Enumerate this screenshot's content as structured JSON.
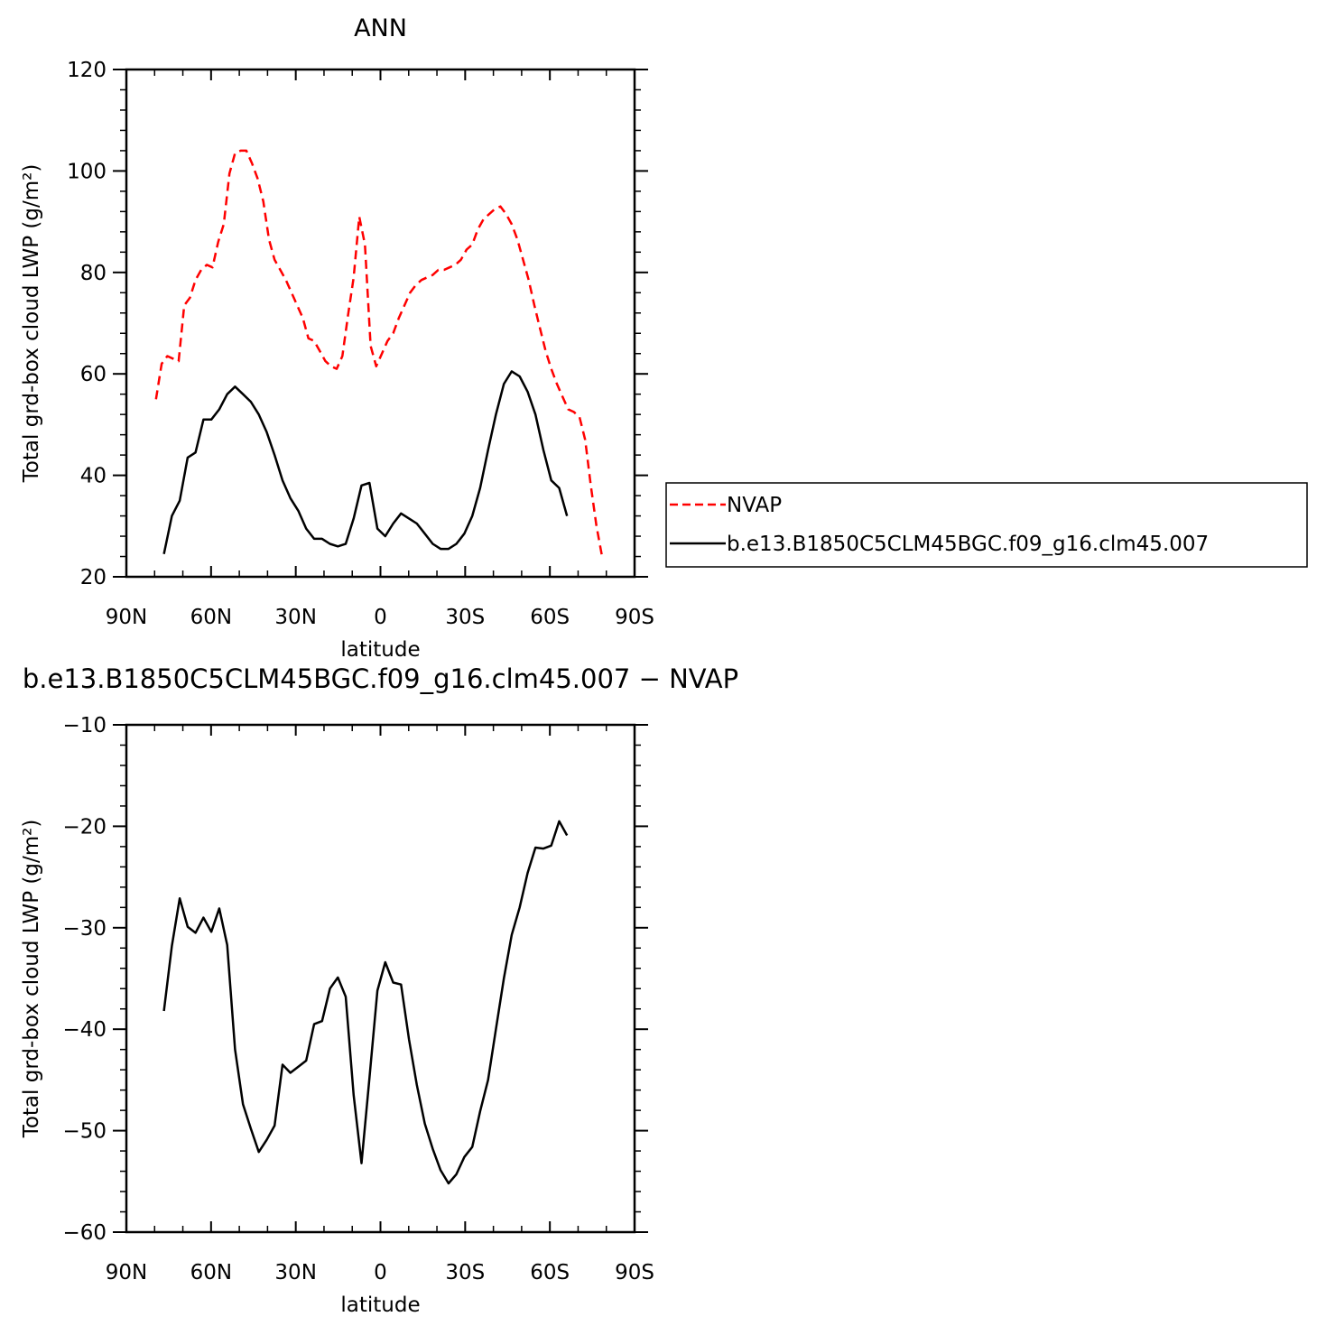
{
  "colors": {
    "obs": "#ff0000",
    "model": "#000000",
    "axis": "#000000"
  },
  "chart_data": [
    {
      "type": "line",
      "title": "ANN",
      "xlabel": "latitude",
      "ylabel": "Total grd-box cloud LWP (g/m²)",
      "xlim": [
        90,
        -90
      ],
      "ylim": [
        20,
        120
      ],
      "xticks": [
        90,
        60,
        30,
        0,
        -30,
        -60,
        -90
      ],
      "xtick_labels": [
        "90N",
        "60N",
        "30N",
        "0",
        "30S",
        "60S",
        "90S"
      ],
      "yticks": [
        20,
        40,
        60,
        80,
        100,
        120
      ],
      "ytick_labels": [
        "20",
        "40",
        "60",
        "80",
        "100",
        "120"
      ],
      "grid": false,
      "legend_position": "right",
      "series": [
        {
          "name": "NVAP",
          "style": "dashed",
          "color": "#ff0000",
          "x": [
            79.5,
            77.5,
            75.5,
            73.5,
            71.5,
            69.5,
            67.5,
            65.5,
            63.5,
            61.5,
            59.5,
            57.5,
            55.5,
            53.5,
            51.5,
            49.5,
            47.5,
            45.5,
            43.5,
            41.5,
            39.5,
            37.5,
            35.5,
            33.5,
            31.5,
            29.5,
            27.5,
            25.5,
            23.5,
            21.5,
            19.5,
            17.5,
            15.5,
            13.5,
            11.5,
            9.5,
            7.5,
            5.5,
            3.5,
            1.5,
            -0.5,
            -2.5,
            -4.5,
            -6.5,
            -8.5,
            -10.5,
            -12.5,
            -14.5,
            -16.5,
            -18.5,
            -20.5,
            -22.5,
            -24.5,
            -26.5,
            -28.5,
            -30.5,
            -32.5,
            -34.5,
            -36.5,
            -38.5,
            -40.5,
            -42.5,
            -44.5,
            -46.5,
            -48.5,
            -50.5,
            -52.5,
            -54.5,
            -56.5,
            -58.5,
            -60.5,
            -62.5,
            -64.5,
            -66.5,
            -68.5,
            -70.5,
            -72.5,
            -74.5,
            -76.5,
            -78.5
          ],
          "y": [
            55,
            62,
            63.5,
            63,
            62.5,
            73.5,
            75,
            78.5,
            80.5,
            81.5,
            81,
            86,
            89.5,
            99.5,
            103.5,
            104,
            104,
            101.5,
            98.5,
            94,
            86.5,
            82.5,
            80.5,
            78.5,
            76,
            73.5,
            71,
            67,
            66.5,
            64.5,
            62.5,
            61.5,
            61,
            63.5,
            71.5,
            79,
            91,
            85.5,
            65.5,
            61.5,
            64,
            66.5,
            68,
            71,
            73.5,
            76,
            77.5,
            78.5,
            79,
            79.5,
            80.5,
            80.5,
            81,
            81.5,
            82.5,
            84.5,
            85.5,
            88.5,
            90.5,
            91.5,
            92.5,
            93,
            91.5,
            89.5,
            86.5,
            82.5,
            78.5,
            73.5,
            69,
            64.5,
            61,
            58,
            55.5,
            53,
            52.5,
            51.5,
            47,
            38,
            30,
            24
          ]
        },
        {
          "name": "b.e13.B1850C5CLM45BGC.f09_g16.clm45.007",
          "style": "solid",
          "color": "#000000",
          "x": [
            76.7,
            73.9,
            71.1,
            68.3,
            65.5,
            62.7,
            59.9,
            57.1,
            54.3,
            51.5,
            48.7,
            45.9,
            43.1,
            40.3,
            37.5,
            34.7,
            31.9,
            29.1,
            26.3,
            23.5,
            20.7,
            17.9,
            15.1,
            12.3,
            9.5,
            6.7,
            3.9,
            1.1,
            -1.7,
            -4.5,
            -7.3,
            -10.1,
            -12.9,
            -15.7,
            -18.5,
            -21.3,
            -24.1,
            -26.9,
            -29.7,
            -32.5,
            -35.3,
            -38.1,
            -40.9,
            -43.7,
            -46.5,
            -49.3,
            -52.1,
            -54.9,
            -57.7,
            -60.5,
            -63.3,
            -66.1
          ],
          "y": [
            24.5,
            32,
            35,
            43.5,
            44.5,
            51,
            51,
            53,
            56,
            57.5,
            56,
            54.5,
            52,
            48.5,
            44,
            39,
            35.5,
            33,
            29.5,
            27.5,
            27.5,
            26.5,
            26,
            26.5,
            31.5,
            38,
            38.5,
            29.5,
            28,
            30.5,
            32.5,
            31.5,
            30.5,
            28.5,
            26.5,
            25.5,
            25.5,
            26.5,
            28.5,
            32,
            37.5,
            45,
            52,
            58,
            60.5,
            59.5,
            56.5,
            52,
            45,
            39,
            37.5,
            32
          ]
        }
      ]
    },
    {
      "type": "line",
      "title": "b.e13.B1850C5CLM45BGC.f09_g16.clm45.007 − NVAP",
      "xlabel": "latitude",
      "ylabel": "Total grd-box cloud LWP (g/m²)",
      "xlim": [
        90,
        -90
      ],
      "ylim": [
        -60,
        -10
      ],
      "xticks": [
        90,
        60,
        30,
        0,
        -30,
        -60,
        -90
      ],
      "xtick_labels": [
        "90N",
        "60N",
        "30N",
        "0",
        "30S",
        "60S",
        "90S"
      ],
      "yticks": [
        -60,
        -50,
        -40,
        -30,
        -20,
        -10
      ],
      "ytick_labels": [
        "−60",
        "−50",
        "−40",
        "−30",
        "−20",
        "−10"
      ],
      "grid": false,
      "series": [
        {
          "style": "solid",
          "color": "#000000",
          "x": [
            76.7,
            73.9,
            71.1,
            68.3,
            65.5,
            62.7,
            59.9,
            57.1,
            54.3,
            51.5,
            48.7,
            45.9,
            43.1,
            40.3,
            37.5,
            34.7,
            31.9,
            29.1,
            26.3,
            23.5,
            20.7,
            17.9,
            15.1,
            12.3,
            9.5,
            6.7,
            3.9,
            1.1,
            -1.7,
            -4.5,
            -7.3,
            -10.1,
            -12.9,
            -15.7,
            -18.5,
            -21.3,
            -24.1,
            -26.9,
            -29.7,
            -32.5,
            -35.3,
            -38.1,
            -40.9,
            -43.7,
            -46.5,
            -49.3,
            -52.1,
            -54.9,
            -57.7,
            -60.5,
            -63.3,
            -66.1
          ],
          "y": [
            -38.2,
            -31.8,
            -27.1,
            -29.9,
            -30.5,
            -29,
            -30.4,
            -28.1,
            -31.7,
            -42,
            -47.4,
            -49.8,
            -52.1,
            -50.9,
            -49.5,
            -43.5,
            -44.3,
            -43.7,
            -43.1,
            -39.5,
            -39.2,
            -36,
            -34.9,
            -36.8,
            -46.5,
            -53.2,
            -44.8,
            -36.2,
            -33.4,
            -35.4,
            -35.6,
            -41,
            -45.5,
            -49.3,
            -51.8,
            -53.9,
            -55.2,
            -54.3,
            -52.6,
            -51.6,
            -48.1,
            -45,
            -40,
            -35,
            -30.7,
            -28,
            -24.6,
            -22.1,
            -22.2,
            -21.9,
            -19.5,
            -20.9
          ]
        }
      ]
    }
  ]
}
